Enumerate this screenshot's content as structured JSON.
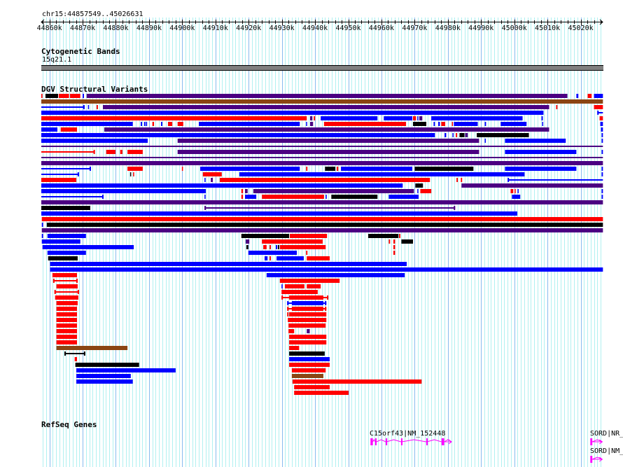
{
  "view": {
    "chrom": "chr15",
    "start": 44857549,
    "end": 45026631,
    "label": "chr15:44857549..45026631"
  },
  "ruler": {
    "ticks": [
      "44860k",
      "44870k",
      "44880k",
      "44890k",
      "44900k",
      "44910k",
      "44920k",
      "44930k",
      "44940k",
      "44950k",
      "44960k",
      "44970k",
      "44980k",
      "44990k",
      "45000k",
      "45010k",
      "45020k"
    ]
  },
  "tracks": {
    "cyto": {
      "title": "Cytogenetic Bands",
      "band": "15q21.1",
      "color": "#808080"
    },
    "dgv": {
      "title": "DGV Structural Variants"
    },
    "refseq": {
      "title": "RefSeq Genes"
    }
  },
  "colors": {
    "r": "#ff0000",
    "b": "#0000ff",
    "p": "#4b0082",
    "k": "#000000",
    "n": "#8b4513",
    "gene": "#ff00ff",
    "grid": "#b0f0f0",
    "grid_major": "#88bbee"
  },
  "dgv_rows": [
    [
      [
        44857.5,
        44857.9,
        "r"
      ],
      [
        44858.8,
        44862.6,
        "k"
      ],
      [
        44862.8,
        44865.9,
        "r"
      ],
      [
        44866.2,
        44869.3,
        "r"
      ],
      [
        44870.0,
        44870.4,
        "b"
      ],
      [
        44871.2,
        45016.0,
        "p"
      ],
      [
        45018.7,
        45019.3,
        "b"
      ],
      [
        45022.1,
        45023.3,
        "r"
      ],
      [
        45024.0,
        45026.7,
        "b"
      ]
    ],
    [
      [
        44857.5,
        45026.7,
        "n"
      ]
    ],
    [
      [
        44857.5,
        44870.6,
        "b",
        1
      ],
      [
        44871.6,
        44871.8,
        "b"
      ],
      [
        44874.2,
        44874.6,
        "r"
      ],
      [
        44876.1,
        45010.5,
        "p"
      ],
      [
        45012.6,
        45013.0,
        "r"
      ],
      [
        45024.0,
        45026.7,
        "r"
      ]
    ],
    [
      [
        44857.5,
        45008.8,
        "b"
      ],
      [
        45025.0,
        45026.7,
        "b",
        1
      ]
    ],
    [
      [
        44857.5,
        44937.5,
        "r"
      ],
      [
        44938.5,
        44939.2,
        "p"
      ],
      [
        44939.6,
        44940.0,
        "r"
      ],
      [
        44941.7,
        44958.8,
        "b"
      ],
      [
        44960.7,
        44969.3,
        "b"
      ],
      [
        44969.5,
        44970.4,
        "r"
      ],
      [
        44970.8,
        44971.0,
        "b"
      ],
      [
        44971.4,
        44972.3,
        "p"
      ],
      [
        44975.0,
        45002.5,
        "b"
      ],
      [
        45008.2,
        45008.6,
        "b"
      ],
      [
        45025.7,
        45026.7,
        "r"
      ]
    ],
    [
      [
        44857.5,
        44885.1,
        "b"
      ],
      [
        44887.5,
        44887.9,
        "b"
      ],
      [
        44888.5,
        44888.9,
        "b"
      ],
      [
        44889.1,
        44889.4,
        "b"
      ],
      [
        44891.0,
        44891.5,
        "r"
      ],
      [
        44893.6,
        44894.0,
        "b"
      ],
      [
        44895.7,
        44897.0,
        "r"
      ],
      [
        44898.6,
        44900.3,
        "r"
      ],
      [
        44905.0,
        44935.4,
        "b"
      ],
      [
        44937.3,
        44937.5,
        "b"
      ],
      [
        44938.5,
        44939.4,
        "p"
      ],
      [
        44942.7,
        44967.4,
        "r"
      ],
      [
        44969.5,
        44973.5,
        "k"
      ],
      [
        44975.7,
        44976.1,
        "b"
      ],
      [
        44977.1,
        44977.6,
        "b"
      ],
      [
        44978.0,
        44979.2,
        "r"
      ],
      [
        44981.2,
        44981.4,
        "r"
      ],
      [
        44981.8,
        44989.0,
        "b"
      ],
      [
        44991.1,
        44991.5,
        "b"
      ],
      [
        44995.9,
        45003.7,
        "b"
      ],
      [
        45008.4,
        45008.6,
        "b"
      ],
      [
        45025.9,
        45026.7,
        "b"
      ]
    ],
    [
      [
        44857.5,
        44862.4,
        "b"
      ],
      [
        44863.4,
        44868.3,
        "r"
      ],
      [
        44876.5,
        45010.5,
        "p"
      ],
      [
        45026.1,
        45026.7,
        "b"
      ]
    ],
    [
      [
        44857.5,
        44976.1,
        "b"
      ],
      [
        44979.0,
        44979.5,
        "b"
      ],
      [
        44981.4,
        44981.6,
        "b"
      ],
      [
        44982.4,
        44982.8,
        "r"
      ],
      [
        44983.5,
        44985.0,
        "k"
      ],
      [
        44985.2,
        44986.0,
        "p"
      ],
      [
        44988.7,
        45004.4,
        "k"
      ],
      [
        45026.3,
        45026.7,
        "b"
      ]
    ],
    [
      [
        44857.5,
        44889.6,
        "b"
      ],
      [
        44898.6,
        44989.4,
        "p"
      ],
      [
        44991.1,
        44991.3,
        "b"
      ],
      [
        44997.2,
        45015.5,
        "b"
      ],
      [
        45026.3,
        45026.7,
        "b"
      ]
    ],
    [
      [
        44857.5,
        45026.7,
        "p",
        1
      ]
    ],
    [
      [
        44857.5,
        44873.7,
        "r",
        1
      ],
      [
        44877.1,
        44879.9,
        "r"
      ],
      [
        44881.3,
        44882.0,
        "r"
      ],
      [
        44883.5,
        44888.1,
        "r"
      ],
      [
        44898.6,
        44989.4,
        "p"
      ],
      [
        44997.2,
        45018.7,
        "b"
      ],
      [
        45026.3,
        45026.7,
        "b"
      ]
    ],
    [
      [
        44857.5,
        45026.7,
        "p",
        1
      ]
    ],
    [
      [
        44857.5,
        45026.7,
        "p"
      ]
    ],
    [
      [
        44857.5,
        44872.5,
        "b",
        1
      ],
      [
        44883.5,
        44888.1,
        "r"
      ],
      [
        44899.9,
        44900.1,
        "r"
      ],
      [
        44905.4,
        44935.4,
        "b"
      ],
      [
        44937.3,
        44937.7,
        "r"
      ],
      [
        44943.0,
        44946.1,
        "k"
      ],
      [
        44946.5,
        44947.0,
        "r"
      ],
      [
        44947.8,
        44969.3,
        "b"
      ],
      [
        44970.0,
        44987.7,
        "k"
      ],
      [
        44997.2,
        45018.7,
        "b"
      ],
      [
        45026.3,
        45026.7,
        "b"
      ]
    ],
    [
      [
        44857.5,
        44868.9,
        "b",
        1
      ],
      [
        44884.3,
        44884.5,
        "k"
      ],
      [
        44885.2,
        44885.4,
        "r"
      ],
      [
        44906.2,
        44911.9,
        "r"
      ],
      [
        44917.2,
        45003.1,
        "b"
      ],
      [
        45026.3,
        45026.7,
        "b"
      ]
    ],
    [
      [
        44857.5,
        44868.1,
        "r"
      ],
      [
        44906.7,
        44906.9,
        "b"
      ],
      [
        44908.6,
        44909.2,
        "p"
      ],
      [
        44911.3,
        44974.6,
        "r"
      ],
      [
        44982.6,
        44983.0,
        "r"
      ],
      [
        44983.9,
        44984.3,
        "r"
      ],
      [
        44998.0,
        45026.7,
        "b",
        1
      ]
    ],
    [
      [
        44857.5,
        44966.4,
        "b"
      ],
      [
        44970.2,
        44972.5,
        "k"
      ],
      [
        44984.1,
        45026.7,
        "p"
      ]
    ],
    [
      [
        44857.5,
        44907.1,
        "b"
      ],
      [
        44917.8,
        44918.3,
        "r"
      ],
      [
        44918.9,
        44919.7,
        "p"
      ],
      [
        44921.4,
        44969.8,
        "p"
      ],
      [
        44970.8,
        44971.0,
        "b"
      ],
      [
        44971.7,
        44975.0,
        "r"
      ],
      [
        44998.9,
        44999.7,
        "r"
      ],
      [
        45000.1,
        45000.3,
        "r"
      ],
      [
        45001.0,
        45001.2,
        "b"
      ],
      [
        45026.3,
        45026.7,
        "b"
      ]
    ],
    [
      [
        44857.5,
        44876.3,
        "b",
        1
      ],
      [
        44906.7,
        44906.9,
        "b"
      ],
      [
        44917.8,
        44918.3,
        "r"
      ],
      [
        44918.9,
        44922.3,
        "b"
      ],
      [
        44924.0,
        44942.7,
        "r"
      ],
      [
        44943.2,
        44943.4,
        "b"
      ],
      [
        44944.9,
        44958.8,
        "k"
      ],
      [
        44962.2,
        44971.2,
        "b"
      ],
      [
        44999.3,
        45001.8,
        "b"
      ],
      [
        45026.3,
        45026.7,
        "b"
      ]
    ],
    [
      [
        44857.5,
        45026.7,
        "p"
      ]
    ],
    [
      [
        44857.5,
        44872.3,
        "k"
      ],
      [
        44906.7,
        44982.2,
        "p",
        1
      ]
    ],
    [
      [
        44857.5,
        45000.9,
        "b"
      ]
    ],
    [
      [
        44857.7,
        45026.7,
        "r"
      ]
    ],
    [
      [
        44857.7,
        44858.1,
        "b"
      ],
      [
        44859.2,
        45026.7,
        "k"
      ]
    ],
    [
      [
        44857.7,
        45026.7,
        "p"
      ]
    ],
    [
      [
        44857.7,
        44858.1,
        "b"
      ],
      [
        44859.4,
        44871.0,
        "b"
      ],
      [
        44917.8,
        44932.2,
        "k"
      ],
      [
        44932.4,
        44943.6,
        "r"
      ],
      [
        44956.0,
        44965.1,
        "k"
      ],
      [
        44965.3,
        44965.7,
        "r"
      ]
    ],
    [
      [
        44857.7,
        44869.3,
        "b"
      ],
      [
        44919.1,
        44920.2,
        "p"
      ],
      [
        44924.0,
        44942.3,
        "r"
      ],
      [
        44962.2,
        44962.6,
        "r"
      ],
      [
        44963.6,
        44964.1,
        "r"
      ],
      [
        44966.0,
        44969.5,
        "k"
      ]
    ],
    [
      [
        44857.9,
        44885.4,
        "b"
      ],
      [
        44919.3,
        44919.9,
        "k"
      ],
      [
        44924.4,
        44925.4,
        "r"
      ],
      [
        44926.3,
        44926.7,
        "r"
      ],
      [
        44928.2,
        44928.6,
        "b"
      ],
      [
        44928.8,
        44929.2,
        "k"
      ],
      [
        44929.4,
        44943.2,
        "r"
      ],
      [
        44963.6,
        44964.1,
        "r"
      ]
    ],
    [
      [
        44859.4,
        44871.0,
        "b"
      ],
      [
        44919.9,
        44934.5,
        "b"
      ],
      [
        44937.3,
        44937.7,
        "r"
      ],
      [
        44963.6,
        44964.1,
        "r"
      ]
    ],
    [
      [
        44859.6,
        44868.5,
        "k"
      ],
      [
        44924.8,
        44925.7,
        "b"
      ],
      [
        44926.3,
        44926.7,
        "r"
      ],
      [
        44928.4,
        44936.6,
        "b"
      ],
      [
        44937.5,
        44944.4,
        "r"
      ]
    ],
    [
      [
        44860.2,
        44967.6,
        "b"
      ]
    ],
    [
      [
        44860.2,
        45026.7,
        "b"
      ]
    ],
    [
      [
        44860.9,
        44868.3,
        "r"
      ],
      [
        44925.4,
        44967.0,
        "b"
      ]
    ],
    [
      [
        44861.1,
        44868.5,
        "r",
        1
      ],
      [
        44929.4,
        44947.4,
        "r"
      ]
    ],
    [
      [
        44862.1,
        44868.5,
        "r"
      ],
      [
        44929.9,
        44930.1,
        "b"
      ],
      [
        44930.9,
        44936.8,
        "r"
      ],
      [
        44937.5,
        44941.7,
        "r"
      ]
    ],
    [
      [
        44861.5,
        44868.9,
        "r",
        1
      ],
      [
        44929.9,
        44940.8,
        "r"
      ]
    ],
    [
      [
        44861.7,
        44868.7,
        "r"
      ],
      [
        44929.9,
        44944.0,
        "r",
        1
      ],
      [
        44932.2,
        44942.5,
        "r"
      ]
    ],
    [
      [
        44862.1,
        44868.5,
        "r"
      ],
      [
        44931.6,
        44943.4,
        "b",
        1
      ],
      [
        44933.0,
        44942.5,
        "b"
      ]
    ],
    [
      [
        44862.1,
        44868.3,
        "r"
      ],
      [
        44931.6,
        44943.4,
        "r",
        1
      ],
      [
        44933.0,
        44942.5,
        "r"
      ]
    ],
    [
      [
        44862.1,
        44868.3,
        "r"
      ],
      [
        44931.6,
        44932.0,
        "r"
      ],
      [
        44932.2,
        44943.4,
        "r"
      ]
    ],
    [
      [
        44862.1,
        44868.3,
        "r"
      ],
      [
        44931.8,
        44943.4,
        "r"
      ]
    ],
    [
      [
        44862.1,
        44868.3,
        "r"
      ],
      [
        44932.0,
        44943.2,
        "r"
      ]
    ],
    [
      [
        44862.1,
        44868.3,
        "r"
      ],
      [
        44932.0,
        44933.7,
        "r"
      ],
      [
        44937.5,
        44938.4,
        "p"
      ]
    ],
    [
      [
        44862.1,
        44868.3,
        "r"
      ],
      [
        44932.2,
        44943.4,
        "r"
      ]
    ],
    [
      [
        44862.1,
        44868.3,
        "r"
      ],
      [
        44932.2,
        44943.4,
        "r"
      ]
    ],
    [
      [
        44862.1,
        44883.5,
        "n"
      ],
      [
        44932.2,
        44935.2,
        "r"
      ]
    ],
    [
      [
        44864.5,
        44870.8,
        "k",
        1
      ],
      [
        44932.2,
        44942.9,
        "k"
      ]
    ],
    [
      [
        44867.6,
        44868.3,
        "r"
      ],
      [
        44932.2,
        44944.4,
        "b"
      ]
    ],
    [
      [
        44867.8,
        44887.0,
        "k"
      ],
      [
        44932.2,
        44944.4,
        "r"
      ]
    ],
    [
      [
        44868.1,
        44898.0,
        "b"
      ],
      [
        44933.0,
        44943.2,
        "r"
      ]
    ],
    [
      [
        44868.1,
        44884.5,
        "b"
      ],
      [
        44933.0,
        44942.5,
        "n"
      ]
    ],
    [
      [
        44868.1,
        44885.1,
        "b"
      ],
      [
        44933.2,
        44972.1,
        "r"
      ]
    ],
    [
      [
        44933.7,
        44944.4,
        "r"
      ]
    ],
    [
      [
        44933.7,
        44950.1,
        "r"
      ]
    ]
  ],
  "genes": [
    {
      "label": "C15orf43|NM_152448",
      "start": 44956.7,
      "end": 44981.1,
      "exons": [
        [
          44956.7,
          44957.4
        ],
        [
          44958.1,
          44958.5
        ],
        [
          44961.3,
          44961.5
        ],
        [
          44965.9,
          44966.1
        ],
        [
          44973.5,
          44973.7
        ],
        [
          44978.1,
          44978.9
        ]
      ]
    },
    {
      "label": "SORD|NR_",
      "start": 45022.9,
      "end": 45026.5,
      "exons": [
        [
          45022.9,
          45023.5
        ]
      ]
    },
    {
      "label": "SORD|NM_",
      "start": 45022.9,
      "end": 45026.5,
      "exons": [
        [
          45022.9,
          45023.5
        ]
      ]
    }
  ]
}
